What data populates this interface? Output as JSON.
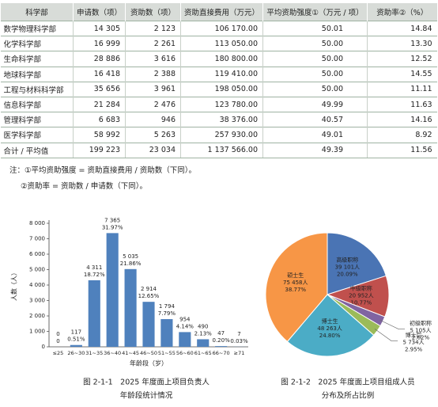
{
  "table": {
    "header": [
      "科学部",
      "申请数（项）",
      "资助数（项）",
      "资助直接费用（万元）",
      "平均资助强度①（万元 / 项）",
      "资助率②（%）"
    ],
    "rows": [
      [
        "数学物理科学部",
        "14 305",
        "2 123",
        "106 170.00",
        "50.01",
        "14.84"
      ],
      [
        "化学科学部",
        "16 999",
        "2 261",
        "113 050.00",
        "50.00",
        "13.30"
      ],
      [
        "生命科学部",
        "28 886",
        "3 616",
        "180 800.00",
        "50.00",
        "12.52"
      ],
      [
        "地球科学部",
        "16 418",
        "2 388",
        "119 410.00",
        "50.00",
        "14.55"
      ],
      [
        "工程与材料科学部",
        "35 656",
        "3 961",
        "198 050.00",
        "50.00",
        "11.11"
      ],
      [
        "信息科学部",
        "21 284",
        "2 476",
        "123 780.00",
        "49.99",
        "11.63"
      ],
      [
        "管理科学部",
        "6 683",
        "946",
        "38 376.00",
        "40.57",
        "14.16"
      ],
      [
        "医学科学部",
        "58 992",
        "5 263",
        "257 930.00",
        "49.01",
        "8.92"
      ],
      [
        "合计 / 平均值",
        "199 223",
        "23 034",
        "1 137 566.00",
        "49.39",
        "11.56"
      ]
    ]
  },
  "notes": [
    "注：①平均资助强度 = 资助直接费用 / 资助数（下同）。",
    "②资助率 = 资助数 / 申请数（下同）。"
  ],
  "chart_data": [
    {
      "type": "bar",
      "caption": [
        "图 2-1-1　2025 年度面上项目负责人",
        "年龄段统计情况"
      ],
      "x_label": "年龄段（岁）",
      "y_label": "人数（人）",
      "categories": [
        "≤25",
        "26~30",
        "31~35",
        "36~40",
        "41~45",
        "46~50",
        "51~55",
        "56~60",
        "61~65",
        "66~70",
        "≥71"
      ],
      "values": [
        0,
        117,
        4311,
        7365,
        5035,
        2914,
        1794,
        954,
        490,
        47,
        7
      ],
      "value_labels": [
        "0",
        "117",
        "4 311",
        "7 365",
        "5 035",
        "2 914",
        "1 794",
        "954",
        "490",
        "47",
        "7"
      ],
      "percentages": [
        0,
        0.51,
        18.72,
        31.97,
        21.86,
        12.65,
        7.79,
        4.14,
        2.13,
        0.2,
        0.03
      ],
      "percentage_labels": [
        "0",
        "0.51%",
        "18.72%",
        "31.97%",
        "21.86%",
        "12.65%",
        "7.79%",
        "4.14%",
        "2.13%",
        "0.20%",
        "0.03%"
      ],
      "color": "#4f81bd",
      "ylim": [
        0,
        8000
      ],
      "yticks": [
        0,
        {
          "value": 1000,
          "label": "1 000"
        },
        {
          "value": 2000,
          "label": "2 000"
        },
        {
          "value": 3000,
          "label": "3 000"
        },
        {
          "value": 4000,
          "label": "4 000"
        },
        {
          "value": 5000,
          "label": "5 000"
        },
        {
          "value": 6000,
          "label": "6 000"
        },
        {
          "value": 7000,
          "label": "7 000"
        },
        {
          "value": 8000,
          "label": "8 000"
        }
      ]
    },
    {
      "type": "pie",
      "caption": [
        "图 2-1-2　2025 年度面上项目组成人员",
        "分布及所占比例"
      ],
      "categories": [
        "高级职称",
        "中级职称",
        "初级职称",
        "博士后",
        "博士生",
        "硕士生"
      ],
      "counts": [
        39101,
        20952,
        5105,
        5734,
        48263,
        75458
      ],
      "count_labels": [
        "39 101人",
        "20 952人",
        "5 105人",
        "5 734人",
        "48 263人",
        "75 458人"
      ],
      "values": [
        20.09,
        10.77,
        2.62,
        2.95,
        24.8,
        38.77
      ],
      "value_labels": [
        "20.09%",
        "10.77%",
        "2.62%",
        "2.95%",
        "24.80%",
        "38.77%"
      ],
      "colors": [
        "#4a74b4",
        "#c0504d",
        "#8064a2",
        "#9bbb59",
        "#4bacc6",
        "#f79646"
      ]
    }
  ]
}
